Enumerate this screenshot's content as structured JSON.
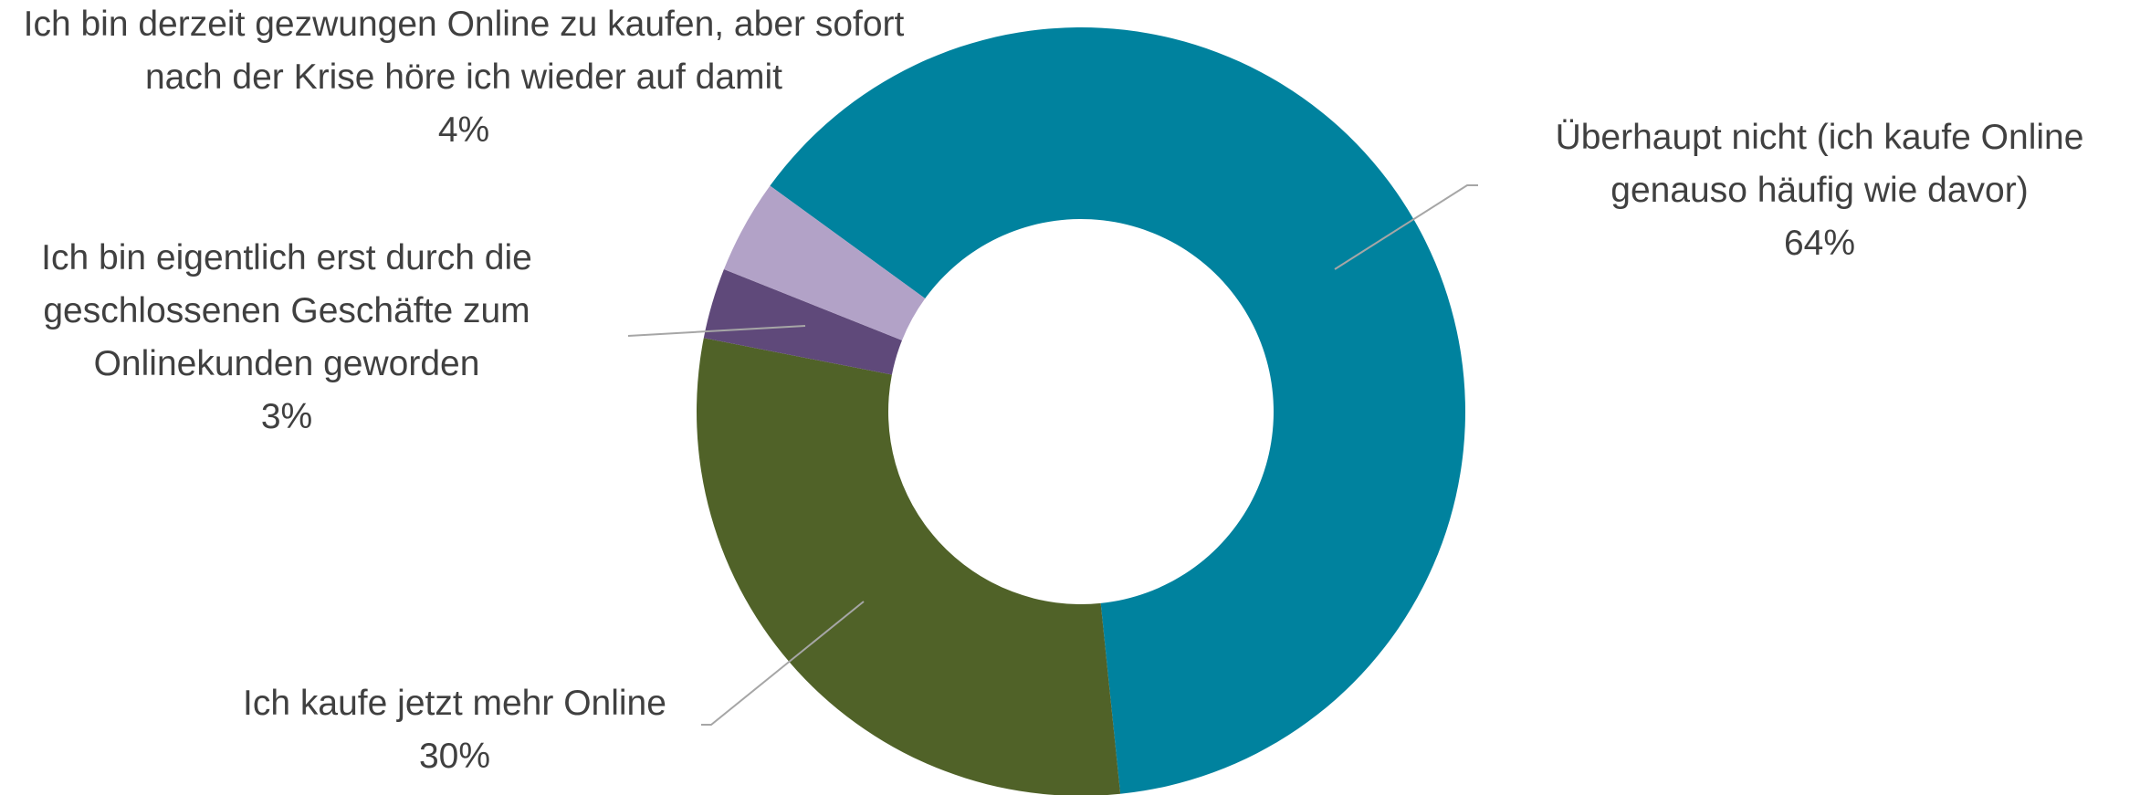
{
  "chart_data": {
    "type": "donut",
    "categories": [
      "Überhaupt nicht (ich kaufe Online genauso häufig wie davor)",
      "Ich kaufe jetzt mehr Online",
      "Ich bin eigentlich erst durch die geschlossenen Geschäfte zum Onlinekunden geworden",
      "Ich bin derzeit gezwungen Online zu kaufen, aber sofort nach der Krise höre ich wieder auf damit"
    ],
    "values": [
      64,
      30,
      3,
      4
    ],
    "value_labels": [
      "64%",
      "30%",
      "3%",
      "4%"
    ],
    "colors": [
      "#00829e",
      "#506228",
      "#5f497a",
      "#b2a2c7"
    ]
  }
}
